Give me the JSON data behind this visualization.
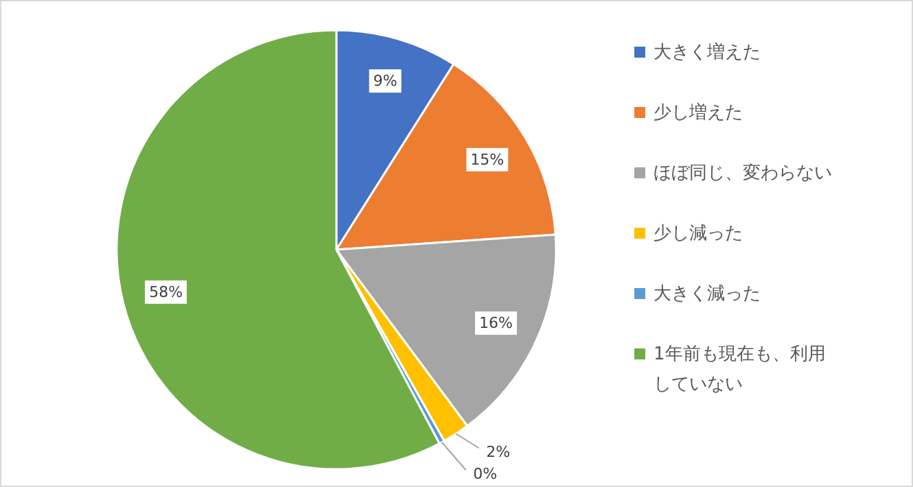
{
  "chart_data": {
    "type": "pie",
    "categories": [
      "大きく増えた",
      "少し増えた",
      "ほぼ同じ、変わらない",
      "少し減った",
      "大きく減った",
      "1年前も現在も、利用していない"
    ],
    "values": [
      9,
      15,
      16,
      2,
      0.4,
      58
    ],
    "value_labels": [
      "9%",
      "15%",
      "16%",
      "2%",
      "0%",
      "58%"
    ],
    "colors": [
      "#4472c4",
      "#ed7d31",
      "#a5a5a5",
      "#ffc000",
      "#5b9bd5",
      "#70ad47"
    ],
    "legend": "right"
  }
}
